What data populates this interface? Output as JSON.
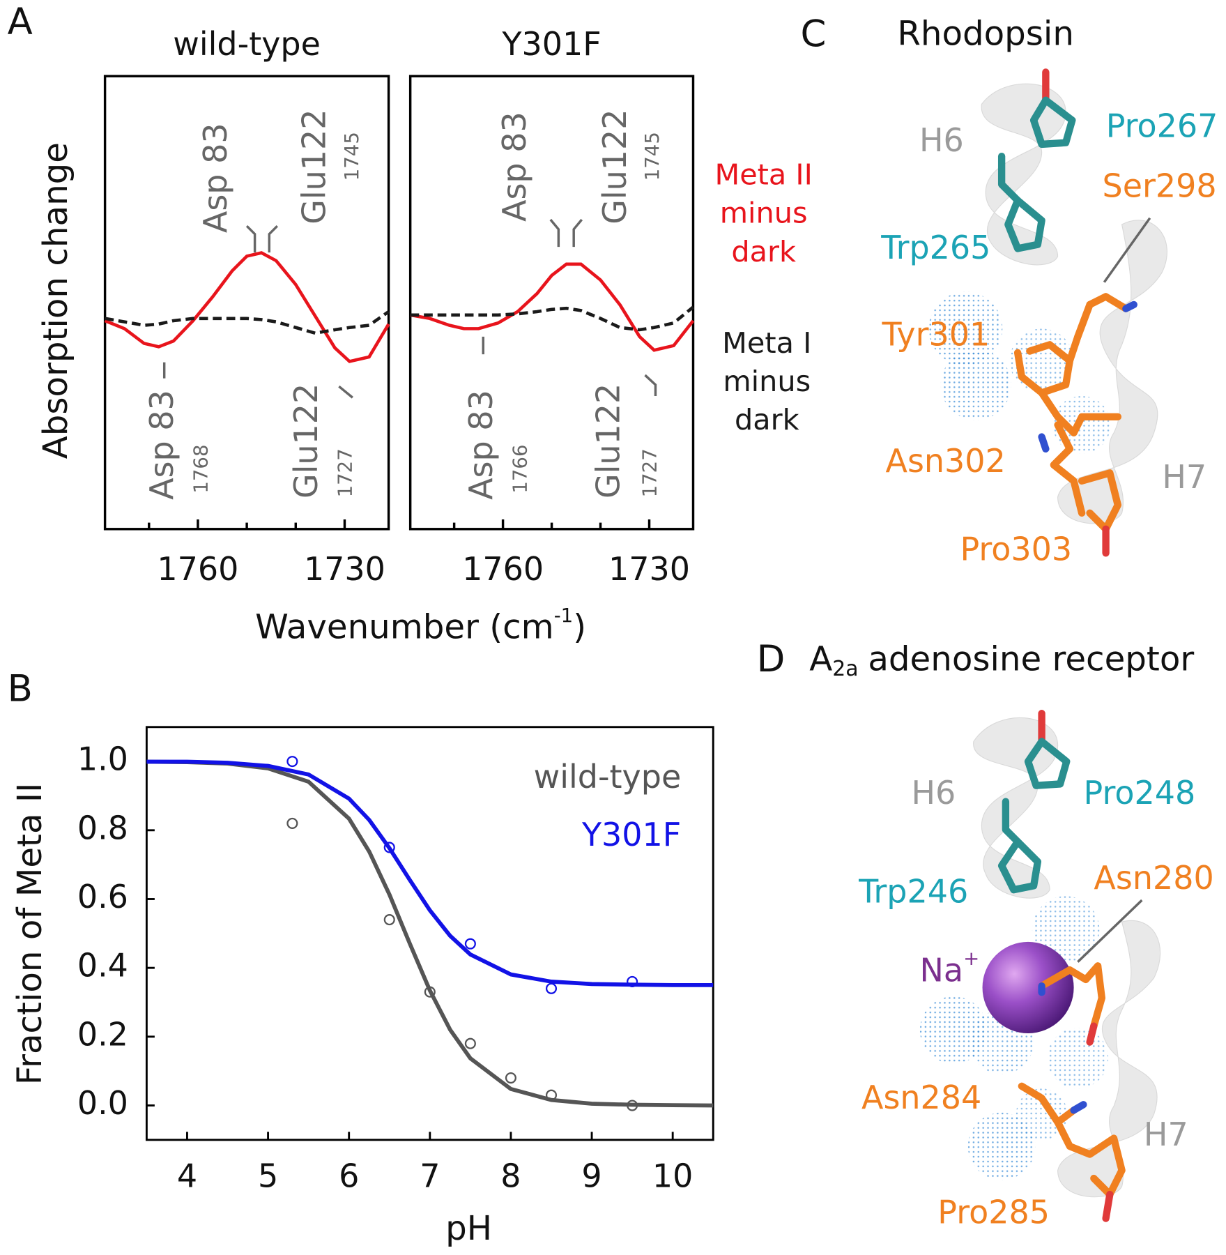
{
  "panel_labels": [
    "A",
    "B",
    "C",
    "D"
  ],
  "chart_data": [
    {
      "type": "line",
      "title": "wild-type",
      "y_label": "Absorption change",
      "x_label": {
        "text": "Wavenumber (cm",
        "sup": "-1",
        "end": ")"
      },
      "xlim": [
        1779,
        1721
      ],
      "xticks": [
        1760,
        1730
      ],
      "xminorticks": [
        1770,
        1750,
        1740
      ],
      "ylim": [
        -1,
        1
      ],
      "x": [
        1779,
        1775,
        1771,
        1768,
        1765,
        1761,
        1757,
        1753,
        1750,
        1747,
        1744,
        1740,
        1736,
        1732,
        1729,
        1725,
        1721
      ],
      "series": [
        {
          "name": "Meta II minus dark",
          "color": "#e8141c",
          "dash": false,
          "values": [
            -0.08,
            -0.115,
            -0.18,
            -0.195,
            -0.17,
            -0.08,
            0.025,
            0.14,
            0.205,
            0.22,
            0.185,
            0.08,
            -0.06,
            -0.2,
            -0.26,
            -0.24,
            -0.095
          ]
        },
        {
          "name": "Meta I minus dark",
          "color": "#1a1a1a",
          "dash": true,
          "values": [
            -0.07,
            -0.085,
            -0.1,
            -0.095,
            -0.08,
            -0.07,
            -0.07,
            -0.07,
            -0.07,
            -0.075,
            -0.085,
            -0.11,
            -0.135,
            -0.12,
            -0.11,
            -0.1,
            -0.04
          ]
        }
      ],
      "annotations": [
        {
          "text": "Asp 83"
        },
        {
          "text": "Glu122",
          "x": 1745
        },
        {
          "text": "Asp 83",
          "x": 1768
        },
        {
          "text": "Glu122",
          "x": 1727
        }
      ]
    },
    {
      "type": "line",
      "title": "Y301F",
      "xlim": [
        1779,
        1721
      ],
      "xticks": [
        1760,
        1730
      ],
      "xminorticks": [
        1770,
        1750,
        1740
      ],
      "ylim": [
        -1,
        1
      ],
      "x": [
        1779,
        1775,
        1771,
        1768,
        1765,
        1761,
        1757,
        1753,
        1750,
        1747,
        1744,
        1740,
        1736,
        1732,
        1729,
        1725,
        1721
      ],
      "series": [
        {
          "color": "#e8141c",
          "dash": false,
          "values": [
            -0.055,
            -0.07,
            -0.1,
            -0.115,
            -0.115,
            -0.09,
            -0.04,
            0.04,
            0.12,
            0.17,
            0.17,
            0.1,
            -0.01,
            -0.15,
            -0.21,
            -0.19,
            -0.08
          ]
        },
        {
          "color": "#1a1a1a",
          "dash": true,
          "values": [
            -0.055,
            -0.055,
            -0.055,
            -0.055,
            -0.055,
            -0.055,
            -0.05,
            -0.04,
            -0.03,
            -0.025,
            -0.035,
            -0.07,
            -0.11,
            -0.12,
            -0.11,
            -0.09,
            -0.02
          ]
        }
      ],
      "annotations": [
        {
          "text": "Asp 83"
        },
        {
          "text": "Glu122",
          "x": 1745
        },
        {
          "text": "Asp 83",
          "x": 1766
        },
        {
          "text": "Glu122",
          "x": 1727
        }
      ]
    },
    {
      "type": "scatter",
      "x_label": "pH",
      "y_label": "Fraction of Meta II",
      "xlim": [
        3.5,
        10.5
      ],
      "xticks": [
        4,
        5,
        6,
        7,
        8,
        9,
        10
      ],
      "ylim": [
        -0.1,
        1.1
      ],
      "yticks": [
        {
          "value": 0,
          "label": "0.0"
        },
        0.2,
        0.4,
        0.6,
        0.8,
        {
          "value": 1,
          "label": "1.0"
        }
      ],
      "series": [
        {
          "name": "wild-type",
          "color": "#555555",
          "x": [
            5.3,
            6.5,
            7.0,
            7.5,
            8.0,
            8.5,
            9.5
          ],
          "values": [
            0.82,
            0.54,
            0.33,
            0.18,
            0.08,
            0.03,
            0.0
          ],
          "fit_x": [
            3.5,
            4,
            4.5,
            5,
            5.5,
            6,
            6.25,
            6.5,
            6.75,
            7,
            7.25,
            7.5,
            8,
            8.5,
            9,
            9.5,
            10,
            10.5
          ],
          "fit_values": [
            0.999,
            0.998,
            0.994,
            0.98,
            0.941,
            0.834,
            0.738,
            0.613,
            0.471,
            0.334,
            0.22,
            0.137,
            0.048,
            0.016,
            0.005,
            0.002,
            0.001,
            0.0
          ]
        },
        {
          "name": "Y301F",
          "color": "#1212e6",
          "x": [
            5.3,
            6.5,
            7.5,
            8.5,
            9.5
          ],
          "values": [
            1.0,
            0.75,
            0.47,
            0.34,
            0.36
          ],
          "fit_x": [
            3.5,
            4,
            4.5,
            5,
            5.5,
            6,
            6.25,
            6.5,
            6.75,
            7,
            7.25,
            7.5,
            8,
            8.5,
            9,
            9.5,
            10,
            10.5
          ],
          "fit_values": [
            0.999,
            0.999,
            0.996,
            0.987,
            0.962,
            0.892,
            0.83,
            0.748,
            0.656,
            0.567,
            0.493,
            0.439,
            0.381,
            0.36,
            0.353,
            0.351,
            0.35,
            0.35
          ]
        }
      ]
    }
  ],
  "structures": [
    {
      "title": "Rhodopsin",
      "labels": [
        {
          "text": "Pro267",
          "color": "#1ba3b5"
        },
        {
          "text": "H6",
          "color": "#9a9a9a"
        },
        {
          "text": "Ser298",
          "color": "#f08020"
        },
        {
          "text": "Trp265",
          "color": "#1ba3b5"
        },
        {
          "text": "Tyr301",
          "color": "#f08020"
        },
        {
          "text": "Asn302",
          "color": "#f08020"
        },
        {
          "text": "H7",
          "color": "#9a9a9a"
        },
        {
          "text": "Pro303",
          "color": "#f08020"
        }
      ]
    },
    {
      "title": {
        "prefix": "A",
        "sub": "2a",
        "text": "adenosine receptor"
      },
      "labels": [
        {
          "text": "H6",
          "color": "#9a9a9a"
        },
        {
          "text": "Pro248",
          "color": "#1ba3b5"
        },
        {
          "text": "Trp246",
          "color": "#1ba3b5"
        },
        {
          "text": "Asn280",
          "color": "#f08020"
        },
        {
          "text": "Na",
          "sup": "+",
          "color": "#7b2f8e"
        },
        {
          "text": "Asn284",
          "color": "#f08020"
        },
        {
          "text": "H7",
          "color": "#9a9a9a"
        },
        {
          "text": "Pro285",
          "color": "#f08020"
        }
      ]
    }
  ]
}
